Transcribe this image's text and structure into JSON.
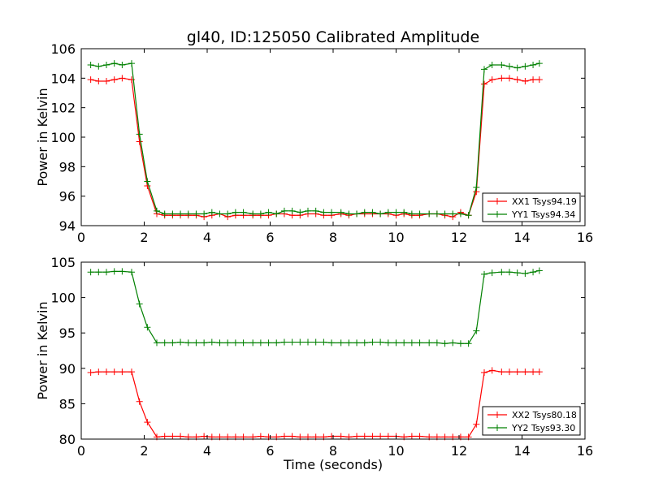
{
  "title": "gl40, ID:125050 Calibrated Amplitude",
  "chart_data": [
    {
      "type": "line",
      "title": "gl40, ID:125050 Calibrated Amplitude",
      "xlabel": "",
      "ylabel": "Power in Kelvin",
      "xlim": [
        0,
        16
      ],
      "ylim": [
        94,
        106
      ],
      "xticks": [
        "0",
        "2",
        "4",
        "6",
        "8",
        "10",
        "12",
        "14",
        "16"
      ],
      "yticks": [
        "94",
        "96",
        "98",
        "100",
        "102",
        "104",
        "106"
      ],
      "grid": false,
      "legend_position": "lower-right",
      "x": [
        0.3,
        0.55,
        0.8,
        1.05,
        1.3,
        1.6,
        1.85,
        2.1,
        2.4,
        2.65,
        2.9,
        3.15,
        3.4,
        3.65,
        3.9,
        4.15,
        4.4,
        4.65,
        4.9,
        5.15,
        5.45,
        5.7,
        5.95,
        6.2,
        6.45,
        6.7,
        6.95,
        7.2,
        7.45,
        7.7,
        7.95,
        8.25,
        8.5,
        8.75,
        9.0,
        9.25,
        9.5,
        9.75,
        10.0,
        10.25,
        10.5,
        10.75,
        11.05,
        11.3,
        11.55,
        11.8,
        12.05,
        12.3,
        12.55,
        12.8,
        13.05,
        13.35,
        13.6,
        13.85,
        14.1,
        14.35,
        14.55
      ],
      "series": [
        {
          "name": "XX1 Tsys94.19",
          "color": "#ff0000",
          "values": [
            103.9,
            103.8,
            103.8,
            103.9,
            104.0,
            103.9,
            99.7,
            96.7,
            94.8,
            94.7,
            94.7,
            94.7,
            94.7,
            94.7,
            94.6,
            94.7,
            94.8,
            94.6,
            94.7,
            94.7,
            94.7,
            94.7,
            94.7,
            94.8,
            94.8,
            94.7,
            94.7,
            94.8,
            94.8,
            94.7,
            94.7,
            94.8,
            94.7,
            94.8,
            94.8,
            94.8,
            94.8,
            94.8,
            94.7,
            94.8,
            94.7,
            94.7,
            94.8,
            94.8,
            94.7,
            94.6,
            94.9,
            94.7,
            96.3,
            103.6,
            103.9,
            104.0,
            104.0,
            103.9,
            103.8,
            103.9,
            103.9
          ]
        },
        {
          "name": "YY1 Tsys94.34",
          "color": "#008000",
          "values": [
            104.9,
            104.8,
            104.9,
            105.0,
            104.9,
            105.0,
            100.2,
            97.0,
            95.0,
            94.8,
            94.8,
            94.8,
            94.8,
            94.8,
            94.8,
            94.9,
            94.8,
            94.8,
            94.9,
            94.9,
            94.8,
            94.8,
            94.9,
            94.8,
            95.0,
            95.0,
            94.9,
            95.0,
            95.0,
            94.9,
            94.9,
            94.9,
            94.8,
            94.8,
            94.9,
            94.9,
            94.8,
            94.9,
            94.9,
            94.9,
            94.8,
            94.8,
            94.8,
            94.8,
            94.8,
            94.8,
            94.8,
            94.7,
            96.6,
            104.6,
            104.9,
            104.9,
            104.8,
            104.7,
            104.8,
            104.9,
            105.0
          ]
        }
      ]
    },
    {
      "type": "line",
      "title": "",
      "xlabel": "Time (seconds)",
      "ylabel": "Power in Kelvin",
      "xlim": [
        0,
        16
      ],
      "ylim": [
        80,
        105
      ],
      "xticks": [
        "0",
        "2",
        "4",
        "6",
        "8",
        "10",
        "12",
        "14",
        "16"
      ],
      "yticks": [
        "80",
        "85",
        "90",
        "95",
        "100",
        "105"
      ],
      "grid": false,
      "legend_position": "lower-right",
      "x": [
        0.3,
        0.55,
        0.8,
        1.05,
        1.3,
        1.6,
        1.85,
        2.1,
        2.4,
        2.65,
        2.9,
        3.15,
        3.4,
        3.65,
        3.9,
        4.15,
        4.4,
        4.65,
        4.9,
        5.15,
        5.45,
        5.7,
        5.95,
        6.2,
        6.45,
        6.7,
        6.95,
        7.2,
        7.45,
        7.7,
        7.95,
        8.25,
        8.5,
        8.75,
        9.0,
        9.25,
        9.5,
        9.75,
        10.0,
        10.25,
        10.5,
        10.75,
        11.05,
        11.3,
        11.55,
        11.8,
        12.05,
        12.3,
        12.55,
        12.8,
        13.05,
        13.35,
        13.6,
        13.85,
        14.1,
        14.35,
        14.55
      ],
      "series": [
        {
          "name": "XX2 Tsys80.18",
          "color": "#ff0000",
          "values": [
            89.4,
            89.5,
            89.5,
            89.5,
            89.5,
            89.5,
            85.3,
            82.4,
            80.3,
            80.4,
            80.4,
            80.4,
            80.3,
            80.3,
            80.4,
            80.3,
            80.3,
            80.3,
            80.3,
            80.3,
            80.3,
            80.4,
            80.3,
            80.3,
            80.4,
            80.4,
            80.3,
            80.3,
            80.3,
            80.3,
            80.4,
            80.4,
            80.3,
            80.4,
            80.4,
            80.4,
            80.4,
            80.4,
            80.4,
            80.3,
            80.4,
            80.4,
            80.3,
            80.3,
            80.3,
            80.3,
            80.3,
            80.3,
            82.1,
            89.4,
            89.7,
            89.5,
            89.5,
            89.5,
            89.5,
            89.5,
            89.5
          ]
        },
        {
          "name": "YY2 Tsys93.30",
          "color": "#008000",
          "values": [
            103.6,
            103.6,
            103.6,
            103.7,
            103.7,
            103.6,
            99.1,
            95.8,
            93.6,
            93.6,
            93.6,
            93.7,
            93.6,
            93.6,
            93.6,
            93.7,
            93.6,
            93.6,
            93.6,
            93.6,
            93.6,
            93.6,
            93.6,
            93.6,
            93.7,
            93.7,
            93.7,
            93.7,
            93.7,
            93.7,
            93.6,
            93.6,
            93.6,
            93.6,
            93.6,
            93.7,
            93.7,
            93.6,
            93.6,
            93.6,
            93.6,
            93.6,
            93.6,
            93.6,
            93.5,
            93.6,
            93.5,
            93.5,
            95.3,
            103.3,
            103.5,
            103.6,
            103.6,
            103.5,
            103.4,
            103.6,
            103.8
          ]
        }
      ]
    }
  ]
}
